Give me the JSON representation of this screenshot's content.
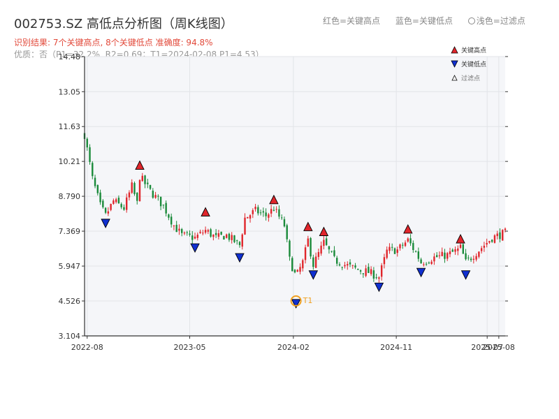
{
  "header": {
    "title": "002753.SZ 高低点分析图（周K线图）",
    "summary": "识别结果: 7个关键高点, 8个关键低点   准确度: 94.8%",
    "quality": "优质：否（P1=32.2%, R2=0.69；T1=2024-02-08 P1=4.53）",
    "legend_top": [
      "红色=关键高点",
      "蓝色=关键低点",
      "浅色=过滤点"
    ]
  },
  "colors": {
    "up": "#e0252b",
    "down": "#1a8a3a",
    "high_marker": "#e0252b",
    "low_marker": "#1030d0",
    "t1_ring": "#f0a020",
    "plot_bg": "#f5f6f9",
    "grid": "#e2e4e8"
  },
  "chart_data": {
    "type": "candlestick",
    "ylim": [
      3.104,
      14.48
    ],
    "yticks": [
      "3.104",
      "4.526",
      "5.947",
      "7.369",
      "8.790",
      "10.21",
      "11.63",
      "13.05",
      "14.48"
    ],
    "xticks": [
      "2022-08",
      "2023-05",
      "2024-02",
      "2024-11",
      "2025-07",
      "2025-08"
    ],
    "x_range": [
      "2022-07-25",
      "2025-08-18"
    ],
    "legend": [
      "关键高点",
      "关键低点",
      "过滤点"
    ],
    "t1_label": "T1",
    "t1": {
      "date": "2024-02-08",
      "price": 4.53
    },
    "key_highs": [
      {
        "date": "2022-12-19",
        "price": 9.8
      },
      {
        "date": "2023-06-12",
        "price": 7.9
      },
      {
        "date": "2023-12-11",
        "price": 8.4
      },
      {
        "date": "2024-03-11",
        "price": 7.3
      },
      {
        "date": "2024-04-22",
        "price": 7.1
      },
      {
        "date": "2024-12-02",
        "price": 7.2
      },
      {
        "date": "2025-04-21",
        "price": 6.8
      }
    ],
    "key_lows": [
      {
        "date": "2022-09-19",
        "price": 7.8
      },
      {
        "date": "2023-05-15",
        "price": 6.8
      },
      {
        "date": "2023-09-11",
        "price": 6.4
      },
      {
        "date": "2024-02-08",
        "price": 4.53
      },
      {
        "date": "2024-03-25",
        "price": 5.7
      },
      {
        "date": "2024-09-16",
        "price": 5.2
      },
      {
        "date": "2025-01-06",
        "price": 5.8
      },
      {
        "date": "2025-05-05",
        "price": 5.7
      }
    ],
    "anchors": [
      [
        "2022-07-25",
        11.3
      ],
      [
        "2022-08-15",
        9.5
      ],
      [
        "2022-09-05",
        8.4
      ],
      [
        "2022-09-19",
        8.0
      ],
      [
        "2022-10-10",
        8.6
      ],
      [
        "2022-11-07",
        8.3
      ],
      [
        "2022-11-28",
        9.2
      ],
      [
        "2022-12-12",
        8.5
      ],
      [
        "2022-12-19",
        9.6
      ],
      [
        "2023-01-16",
        9.0
      ],
      [
        "2023-02-20",
        8.4
      ],
      [
        "2023-03-20",
        7.6
      ],
      [
        "2023-04-10",
        7.2
      ],
      [
        "2023-05-15",
        7.1
      ],
      [
        "2023-06-12",
        7.4
      ],
      [
        "2023-07-10",
        7.1
      ],
      [
        "2023-08-07",
        7.2
      ],
      [
        "2023-09-11",
        6.8
      ],
      [
        "2023-09-25",
        7.9
      ],
      [
        "2023-10-23",
        8.2
      ],
      [
        "2023-11-20",
        8.0
      ],
      [
        "2023-12-11",
        8.3
      ],
      [
        "2024-01-08",
        7.6
      ],
      [
        "2024-01-22",
        6.2
      ],
      [
        "2024-02-08",
        5.5
      ],
      [
        "2024-02-26",
        6.1
      ],
      [
        "2024-03-11",
        7.0
      ],
      [
        "2024-03-25",
        6.0
      ],
      [
        "2024-04-22",
        6.9
      ],
      [
        "2024-05-20",
        6.2
      ],
      [
        "2024-06-17",
        6.0
      ],
      [
        "2024-07-22",
        5.8
      ],
      [
        "2024-08-19",
        5.7
      ],
      [
        "2024-09-16",
        5.5
      ],
      [
        "2024-10-08",
        6.6
      ],
      [
        "2024-11-04",
        6.6
      ],
      [
        "2024-12-02",
        7.0
      ],
      [
        "2024-12-23",
        6.5
      ],
      [
        "2025-01-06",
        6.1
      ],
      [
        "2025-02-10",
        6.3
      ],
      [
        "2025-03-17",
        6.4
      ],
      [
        "2025-04-14",
        6.6
      ],
      [
        "2025-04-21",
        6.7
      ],
      [
        "2025-05-05",
        6.1
      ],
      [
        "2025-05-26",
        6.4
      ],
      [
        "2025-06-23",
        6.8
      ],
      [
        "2025-07-14",
        7.1
      ],
      [
        "2025-08-18",
        7.3
      ]
    ]
  }
}
